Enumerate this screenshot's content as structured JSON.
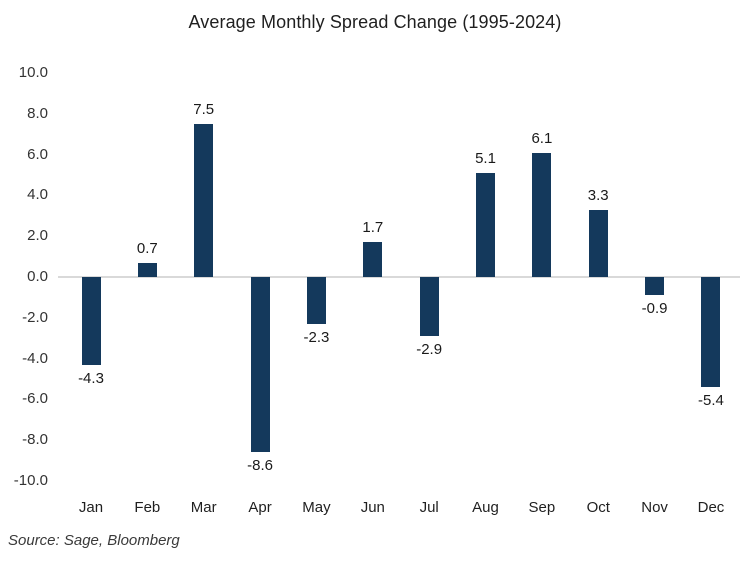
{
  "header": {
    "title": "Average Monthly Spread Change (1995-2024)"
  },
  "footer": {
    "source": "Source: Sage, Bloomberg"
  },
  "colors": {
    "bar": "#14395C",
    "zero_line": "#d9d9d9",
    "title_text": "#1f1f1f",
    "tick_text": "#333333",
    "label_text": "#1a1a1a"
  },
  "chart_data": {
    "type": "bar",
    "title": "Average Monthly Spread Change (1995-2024)",
    "categories": [
      "Jan",
      "Feb",
      "Mar",
      "Apr",
      "May",
      "Jun",
      "Jul",
      "Aug",
      "Sep",
      "Oct",
      "Nov",
      "Dec"
    ],
    "values": [
      -4.3,
      0.7,
      7.5,
      -8.6,
      -2.3,
      1.7,
      -2.9,
      5.1,
      6.1,
      3.3,
      -0.9,
      -5.4
    ],
    "data_labels": [
      "-4.3",
      "0.7",
      "7.5",
      "-8.6",
      "-2.3",
      "1.7",
      "-2.9",
      "5.1",
      "6.1",
      "3.3",
      "-0.9",
      "-5.4"
    ],
    "xlabel": "",
    "ylabel": "",
    "ylim": [
      -10,
      10
    ],
    "ytick_step": 2,
    "ytick_labels": [
      "10.0",
      "8.0",
      "6.0",
      "4.0",
      "2.0",
      "0.0",
      "-2.0",
      "-4.0",
      "-6.0",
      "-8.0",
      "-10.0"
    ],
    "grid": "off",
    "zero_line": true,
    "legend": "none",
    "source": "Source: Sage, Bloomberg"
  }
}
